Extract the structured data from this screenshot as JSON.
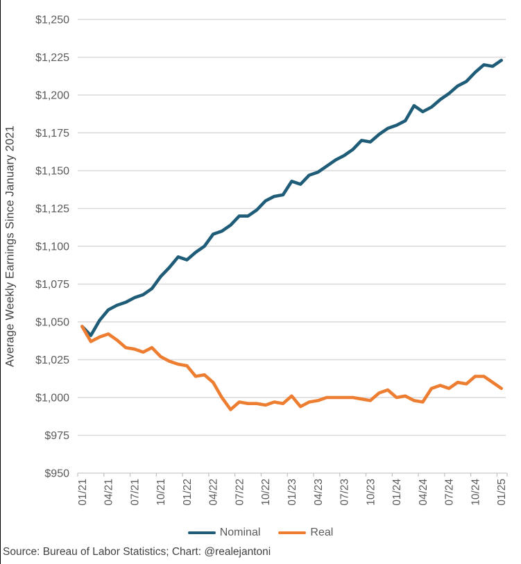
{
  "chart_data": {
    "type": "line",
    "title": "",
    "xlabel": "",
    "ylabel": "Average Weekly Earnings Since January 2021",
    "ylim": [
      950,
      1250
    ],
    "grid": true,
    "legend_position": "bottom",
    "y_ticks": [
      950,
      975,
      1000,
      1025,
      1050,
      1075,
      1100,
      1125,
      1150,
      1175,
      1200,
      1225,
      1250
    ],
    "y_tick_labels": [
      "$950",
      "$975",
      "$1,000",
      "$1,025",
      "$1,050",
      "$1,075",
      "$1,100",
      "$1,125",
      "$1,150",
      "$1,175",
      "$1,200",
      "$1,225",
      "$1,250"
    ],
    "x_tick_labels": [
      "01/21",
      "04/21",
      "07/21",
      "10/21",
      "01/22",
      "04/22",
      "07/22",
      "10/22",
      "01/23",
      "04/23",
      "07/23",
      "10/23",
      "01/24",
      "04/24",
      "07/24",
      "10/24",
      "01/25"
    ],
    "x_months_per_tick": 3,
    "series": [
      {
        "name": "Nominal",
        "color": "#1F5C78",
        "values": [
          1047,
          1041,
          1051,
          1058,
          1061,
          1063,
          1066,
          1068,
          1072,
          1080,
          1086,
          1093,
          1091,
          1096,
          1100,
          1108,
          1110,
          1114,
          1120,
          1120,
          1124,
          1130,
          1133,
          1134,
          1143,
          1141,
          1147,
          1149,
          1153,
          1157,
          1160,
          1164,
          1170,
          1169,
          1174,
          1178,
          1180,
          1183,
          1193,
          1189,
          1192,
          1197,
          1201,
          1206,
          1209,
          1215,
          1220,
          1219,
          1223
        ]
      },
      {
        "name": "Real",
        "color": "#ED7D31",
        "values": [
          1047,
          1037,
          1040,
          1042,
          1038,
          1033,
          1032,
          1030,
          1033,
          1027,
          1024,
          1022,
          1021,
          1014,
          1015,
          1010,
          1000,
          992,
          997,
          996,
          996,
          995,
          997,
          996,
          1001,
          994,
          997,
          998,
          1000,
          1000,
          1000,
          1000,
          999,
          998,
          1003,
          1005,
          1000,
          1001,
          998,
          997,
          1006,
          1008,
          1006,
          1010,
          1009,
          1014,
          1014,
          1010,
          1006
        ]
      }
    ]
  },
  "style": {
    "gridline_color": "#D9D9D9",
    "axis_line_color": "#D9D9D9",
    "tick_mark_color": "#BFBFBF",
    "tick_label_color": "#595959",
    "axis_title_color": "#404040"
  },
  "footer": {
    "source": "Source: Bureau of Labor Statistics; Chart: @realejantoni"
  }
}
